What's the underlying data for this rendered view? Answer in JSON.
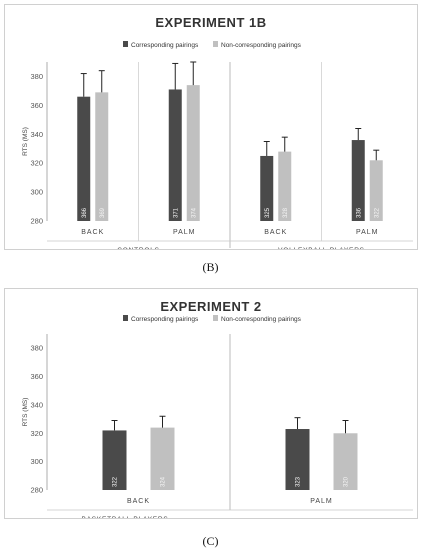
{
  "captions": {
    "b": "(B)",
    "c": "(C)"
  },
  "colors": {
    "corresponding": "#4a4a4a",
    "noncorresponding": "#c0c0c0",
    "error": "#222222",
    "axis": "#999999"
  },
  "chart_data": [
    {
      "type": "bar",
      "title": "EXPERIMENT 1B",
      "ylabel": "RTS (MS)",
      "ylim": [
        280,
        390
      ],
      "yticks": [
        280,
        300,
        320,
        340,
        360,
        380
      ],
      "grid": false,
      "legend_position": "top-center",
      "series_names": [
        "Corresponding pairings",
        "Non-corresponding pairings"
      ],
      "categories": [
        "BACK",
        "PALM",
        "BACK",
        "PALM"
      ],
      "groups": [
        {
          "label": "CONTROLS",
          "categories": [
            "BACK",
            "PALM"
          ]
        },
        {
          "label": "VOLLEYBALL PLAYERS",
          "categories": [
            "BACK",
            "PALM"
          ]
        }
      ],
      "series": [
        {
          "name": "Corresponding pairings",
          "values": [
            366,
            371,
            325,
            336
          ],
          "errors": [
            16,
            18,
            10,
            8
          ],
          "labels": [
            "366",
            "371",
            "325",
            "336"
          ]
        },
        {
          "name": "Non-corresponding pairings",
          "values": [
            369,
            374,
            328,
            322
          ],
          "errors": [
            15,
            16,
            10,
            7
          ],
          "labels": [
            "369",
            "374",
            "328",
            "322"
          ]
        }
      ]
    },
    {
      "type": "bar",
      "title": "EXPERIMENT 2",
      "ylabel": "RTS (MS)",
      "ylim": [
        280,
        390
      ],
      "yticks": [
        280,
        300,
        320,
        340,
        360,
        380
      ],
      "grid": false,
      "legend_position": "top-center",
      "series_names": [
        "Corresponding pairings",
        "Non-corresponding pairings"
      ],
      "categories": [
        "BACK",
        "PALM"
      ],
      "groups": [
        {
          "label": "BASKETBALL PLAYERS",
          "categories": [
            "BACK",
            "PALM"
          ]
        }
      ],
      "series": [
        {
          "name": "Corresponding pairings",
          "values": [
            322,
            323
          ],
          "errors": [
            7,
            8
          ],
          "labels": [
            "322",
            "323"
          ]
        },
        {
          "name": "Non-corresponding pairings",
          "values": [
            324,
            320
          ],
          "errors": [
            8,
            9
          ],
          "labels": [
            "324",
            "320"
          ]
        }
      ]
    }
  ]
}
